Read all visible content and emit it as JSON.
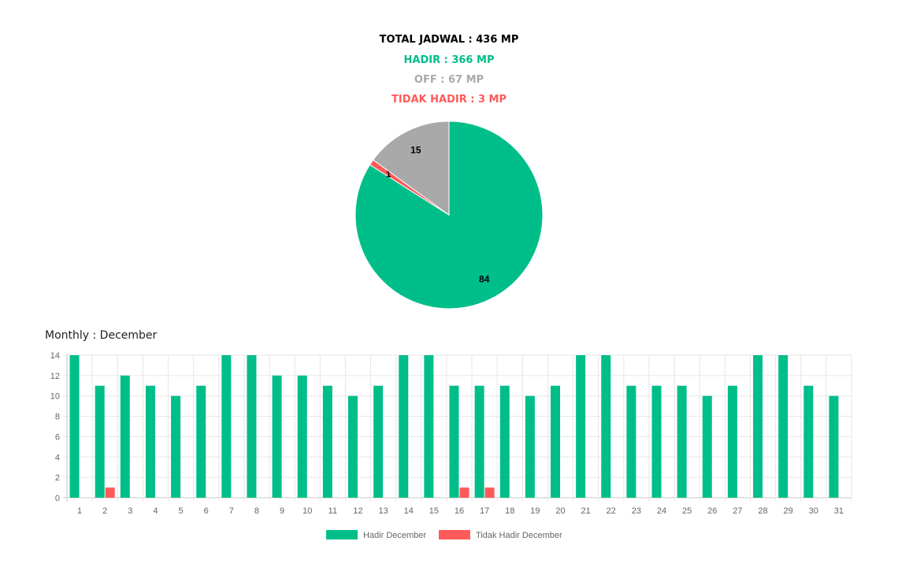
{
  "summary": {
    "total": "TOTAL JADWAL : 436 MP",
    "hadir": "HADIR : 366 MP",
    "off": "OFF : 67 MP",
    "tidak_hadir": "TIDAK HADIR : 3 MP"
  },
  "colors": {
    "hadir": "#00be8a",
    "off": "#a9a9a9",
    "tidak_hadir": "#ff5a5a",
    "total": "#000000"
  },
  "monthly_title": "Monthly : December",
  "chart_data": [
    {
      "type": "pie",
      "slices": [
        {
          "value": 84,
          "label": "84",
          "color": "#00be8a"
        },
        {
          "value": 1,
          "label": "1",
          "color": "#ff5a5a"
        },
        {
          "value": 15,
          "label": "15",
          "color": "#a9a9a9"
        }
      ]
    },
    {
      "type": "bar",
      "categories": [
        "1",
        "2",
        "3",
        "4",
        "5",
        "6",
        "7",
        "8",
        "9",
        "10",
        "11",
        "12",
        "13",
        "14",
        "15",
        "16",
        "17",
        "18",
        "19",
        "20",
        "21",
        "22",
        "23",
        "24",
        "25",
        "26",
        "27",
        "28",
        "29",
        "30",
        "31"
      ],
      "series": [
        {
          "name": "Hadir December",
          "color": "#00be8a",
          "values": [
            14,
            11,
            12,
            11,
            10,
            11,
            14,
            14,
            12,
            12,
            11,
            10,
            11,
            14,
            14,
            11,
            11,
            11,
            10,
            11,
            14,
            14,
            11,
            11,
            11,
            10,
            11,
            14,
            14,
            11,
            10
          ]
        },
        {
          "name": "Tidak Hadir December",
          "color": "#ff5a5a",
          "values": [
            0,
            1,
            0,
            0,
            0,
            0,
            0,
            0,
            0,
            0,
            0,
            0,
            0,
            0,
            0,
            1,
            1,
            0,
            0,
            0,
            0,
            0,
            0,
            0,
            0,
            0,
            0,
            0,
            0,
            0,
            0
          ]
        }
      ],
      "yticks": [
        "0",
        "2",
        "4",
        "6",
        "8",
        "10",
        "12",
        "14"
      ],
      "ylim": [
        0,
        14
      ],
      "grid": true,
      "legend": "bottom"
    }
  ]
}
